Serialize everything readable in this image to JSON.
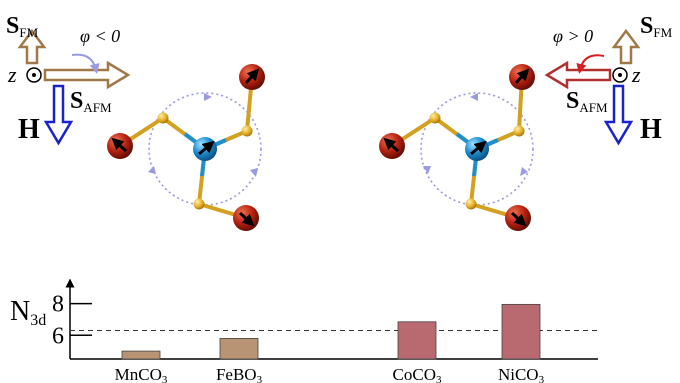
{
  "left_panel": {
    "s_fm": {
      "main": "S",
      "sub": "FM"
    },
    "s_afm": {
      "main": "S",
      "sub": "AFM"
    },
    "z_label": "z",
    "field_label": "H",
    "phi_label": "φ < 0"
  },
  "right_panel": {
    "s_fm": {
      "main": "S",
      "sub": "FM"
    },
    "s_afm": {
      "main": "S",
      "sub": "AFM"
    },
    "z_label": "z",
    "field_label": "H",
    "phi_label": "φ > 0"
  },
  "colors": {
    "fm_arrow": "#a07848",
    "afm_arrow_left": "#a07848",
    "afm_arrow_right": "#b03030",
    "field_arrow": "#1a22cc",
    "phi_arrow_left": "#9a9ae0",
    "phi_arrow_right": "#d42020",
    "oxygen_atom": "#b32010",
    "bond_gold": "#d4a020",
    "metal_atom": "#1e90d0",
    "circulation": "#9a9ae0"
  },
  "chart_data": {
    "type": "bar",
    "ylabel": {
      "main": "N",
      "sub": "3d"
    },
    "yticks": [
      6,
      8
    ],
    "ylim": [
      4.5,
      9.3
    ],
    "reference_line": 6.3,
    "categories": [
      {
        "label_main": "MnCO",
        "label_sub": "3"
      },
      {
        "label_main": "FeBO",
        "label_sub": "3"
      },
      {
        "label_main": "CoCO",
        "label_sub": "3"
      },
      {
        "label_main": "NiCO",
        "label_sub": "3"
      }
    ],
    "values": [
      5.0,
      5.8,
      6.85,
      7.95
    ],
    "bar_colors": [
      "#b89474",
      "#b89474",
      "#b86a70",
      "#b86a70"
    ]
  }
}
